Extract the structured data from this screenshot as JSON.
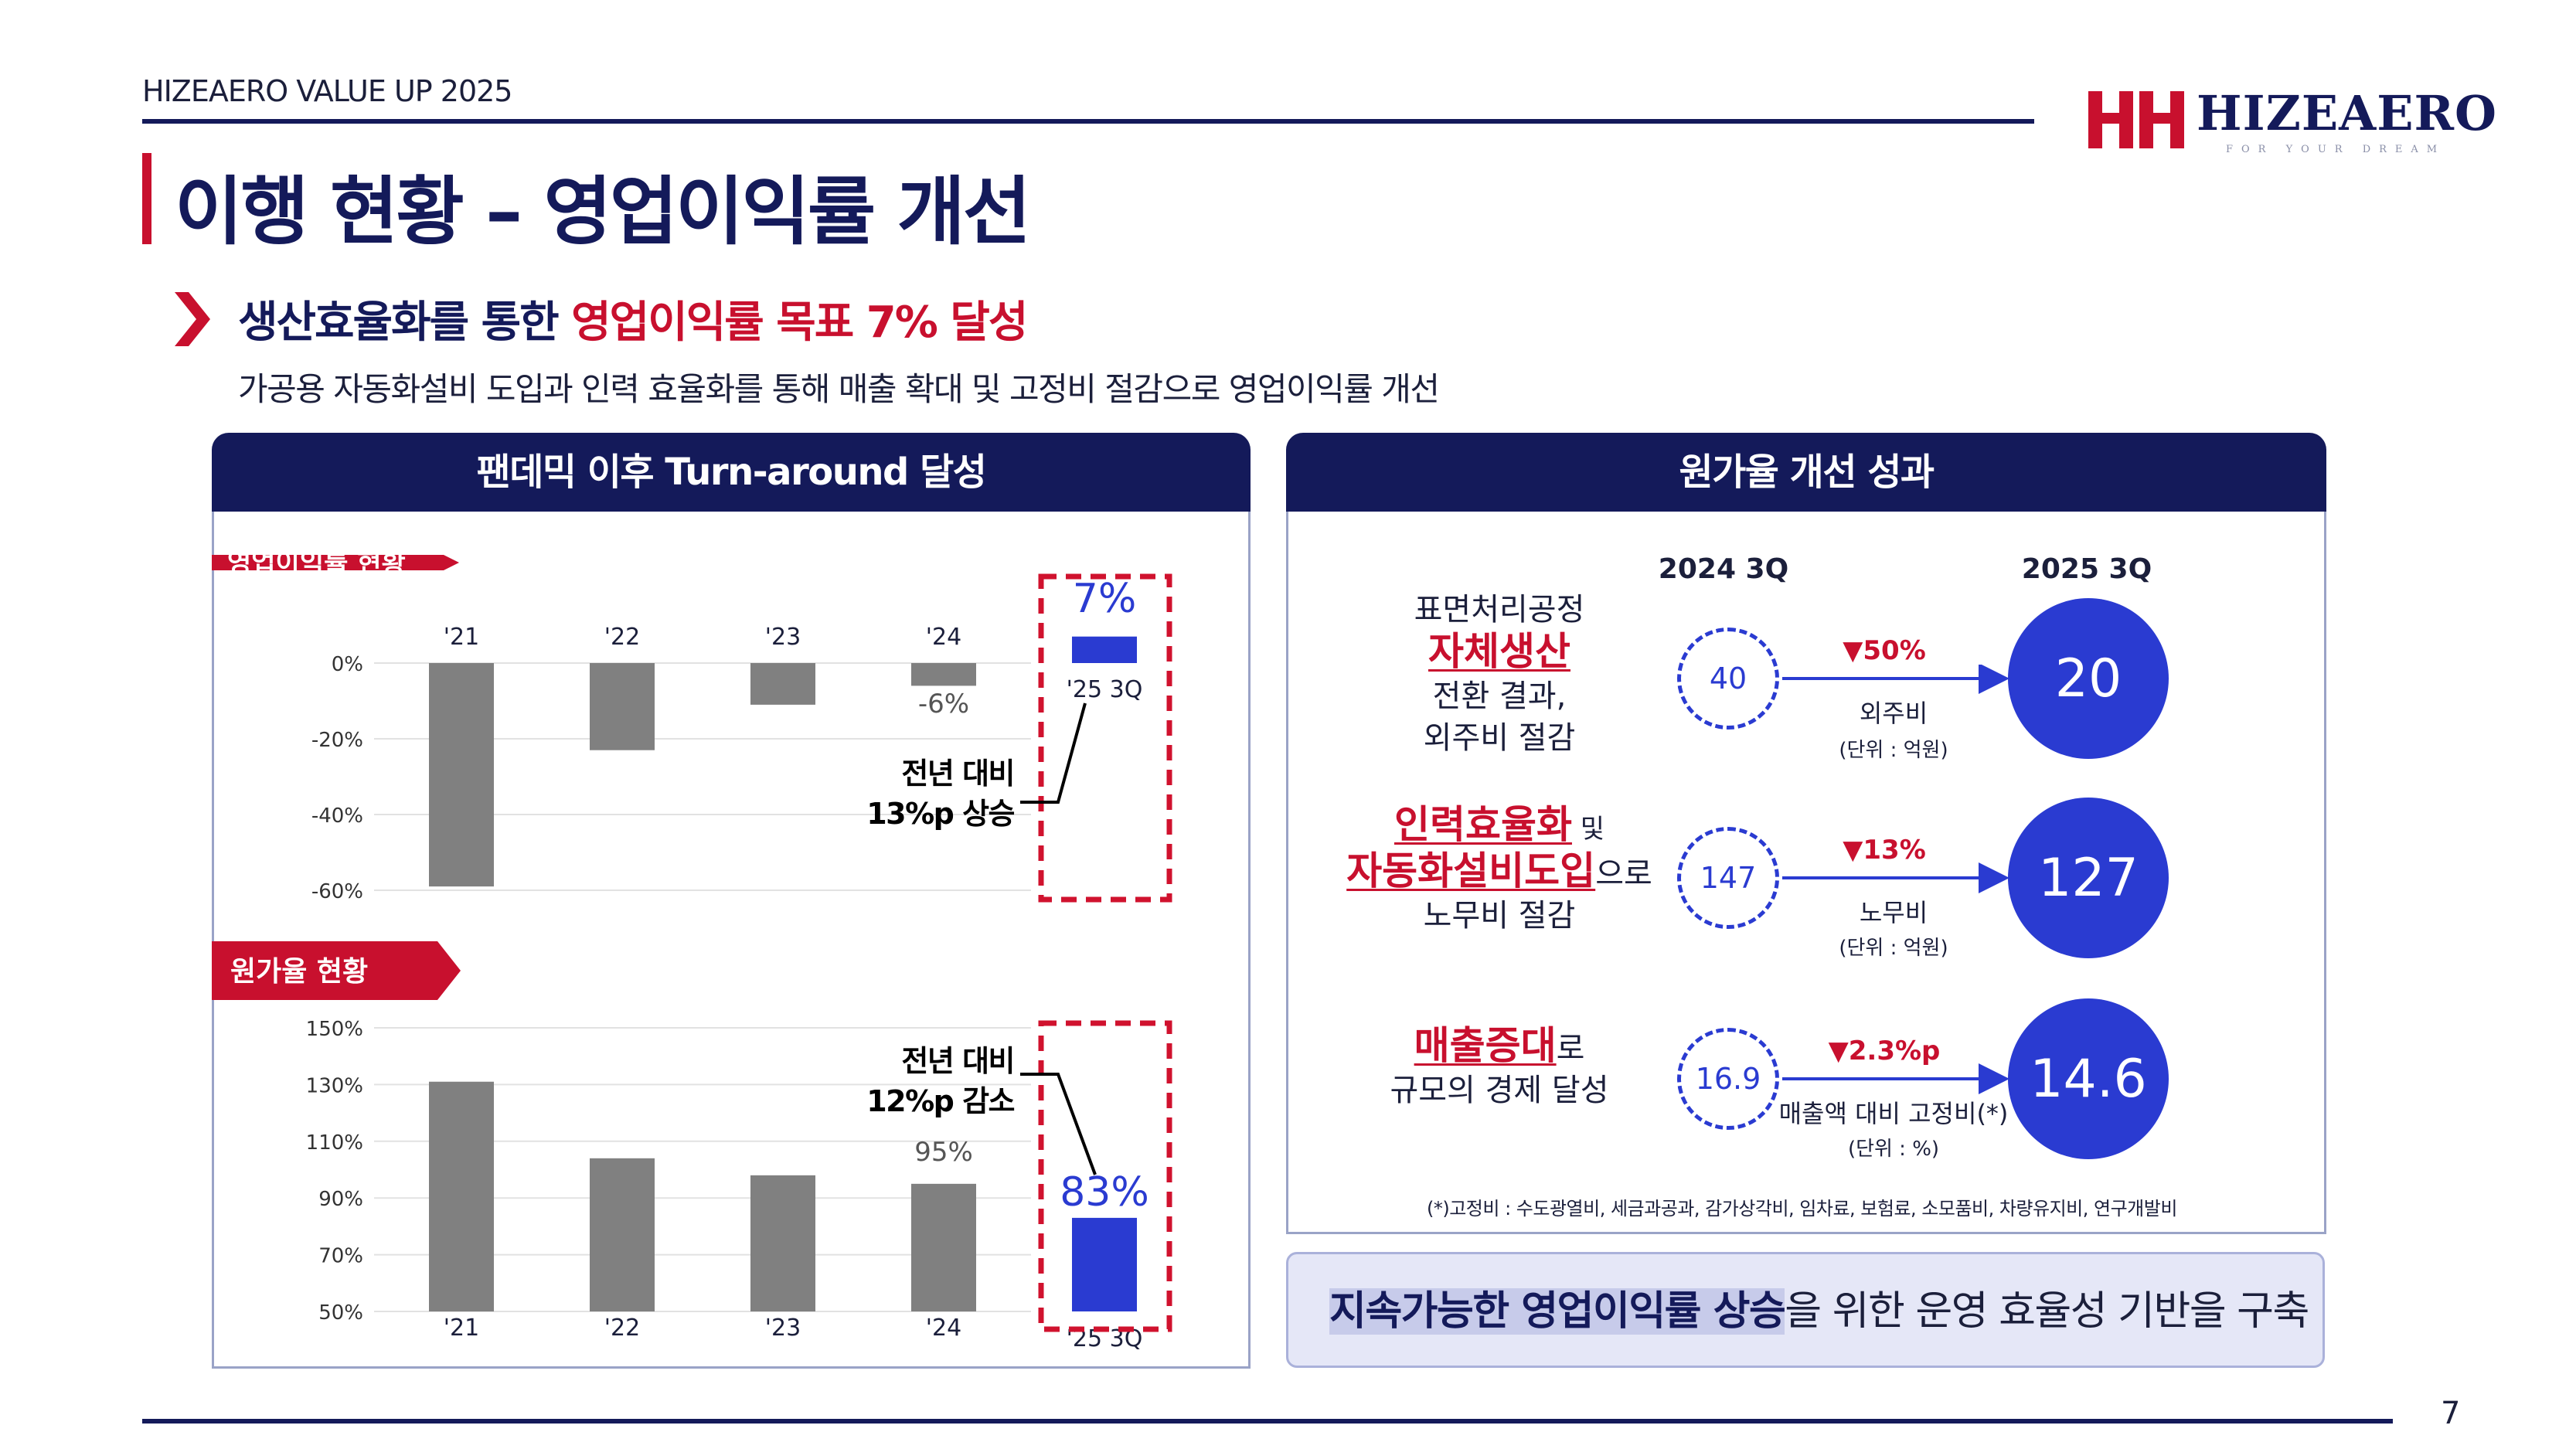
{
  "header": {
    "doc_label": "HIZEAERO VALUE UP 2025",
    "logo_text": "HIZEAERO",
    "logo_tagline": "FOR YOUR DREAM",
    "page_number": "7"
  },
  "title": "이행 현황 – 영업이익률 개선",
  "headline": {
    "prefix": "생산효율화를 통한 ",
    "highlight": "영업이익률 목표 7% 달성"
  },
  "subline": "가공용 자동화설비 도입과 인력 효율화를 통해 매출 확대 및 고정비 절감으로 영업이익률 개선",
  "left_panel": {
    "title": "팬데믹 이후 Turn-around 달성",
    "chart1_tab": "영업이익률 현황",
    "chart2_tab": "원가율 현황"
  },
  "chart_data": [
    {
      "type": "bar",
      "title": "영업이익률 현황",
      "categories": [
        "'21",
        "'22",
        "'23",
        "'24",
        "'25 3Q"
      ],
      "values": [
        -59,
        -23,
        -11,
        -6,
        7
      ],
      "data_labels": [
        "",
        "",
        "",
        "-6%",
        "7%"
      ],
      "yticks": [
        "0%",
        "-20%",
        "-40%",
        "-60%"
      ],
      "ylim": [
        -60,
        7
      ],
      "highlight_index": 4,
      "annotation": [
        "전년 대비",
        "13%p 상승"
      ],
      "grid": true,
      "colors": {
        "base": "#808080",
        "highlight": "#2a3bd1"
      }
    },
    {
      "type": "bar",
      "title": "원가율 현황",
      "categories": [
        "'21",
        "'22",
        "'23",
        "'24",
        "'25 3Q"
      ],
      "values": [
        131,
        104,
        98,
        95,
        83
      ],
      "data_labels": [
        "",
        "",
        "",
        "95%",
        "83%"
      ],
      "yticks": [
        "150%",
        "130%",
        "110%",
        "90%",
        "70%",
        "50%"
      ],
      "ylim": [
        50,
        150
      ],
      "highlight_index": 4,
      "annotation": [
        "전년 대비",
        "12%p 감소"
      ],
      "grid": true,
      "colors": {
        "base": "#808080",
        "highlight": "#2a3bd1"
      }
    }
  ],
  "right_panel": {
    "title": "원가율 개선 성과",
    "col_before": "2024 3Q",
    "col_after": "2025 3Q",
    "rows": [
      {
        "line1": "표면처리공정",
        "emph1": "자체생산",
        "line3": "전환 결과,",
        "line4": "외주비 절감",
        "before": "40",
        "after": "20",
        "change": "▼50%",
        "item": "외주비",
        "unit": "(단위 : 억원)"
      },
      {
        "emph1": "인력효율화",
        "tail1": " 및",
        "emph2": "자동화설비도입",
        "tail2": "으로",
        "line3": "노무비 절감",
        "before": "147",
        "after": "127",
        "change": "▼13%",
        "item": "노무비",
        "unit": "(단위 : 억원)"
      },
      {
        "emph1": "매출증대",
        "tail1": "로",
        "line3": "규모의 경제 달성",
        "before": "16.9",
        "after": "14.6",
        "change": "▼2.3%p",
        "item": "매출액 대비 고정비(*)",
        "unit": "(단위 : %)"
      }
    ],
    "footnote": "(*)고정비 : 수도광열비, 세금과공과, 감가상각비, 임차료, 보험료, 소모품비, 차량유지비, 연구개발비"
  },
  "summary": {
    "highlight": "지속가능한 영업이익률 상승",
    "rest": "을 위한 운영 효율성 기반을 구축"
  },
  "colors": {
    "navy": "#141a5a",
    "red": "#c8102e",
    "blue": "#2a3bd1",
    "gray_bar": "#808080"
  }
}
